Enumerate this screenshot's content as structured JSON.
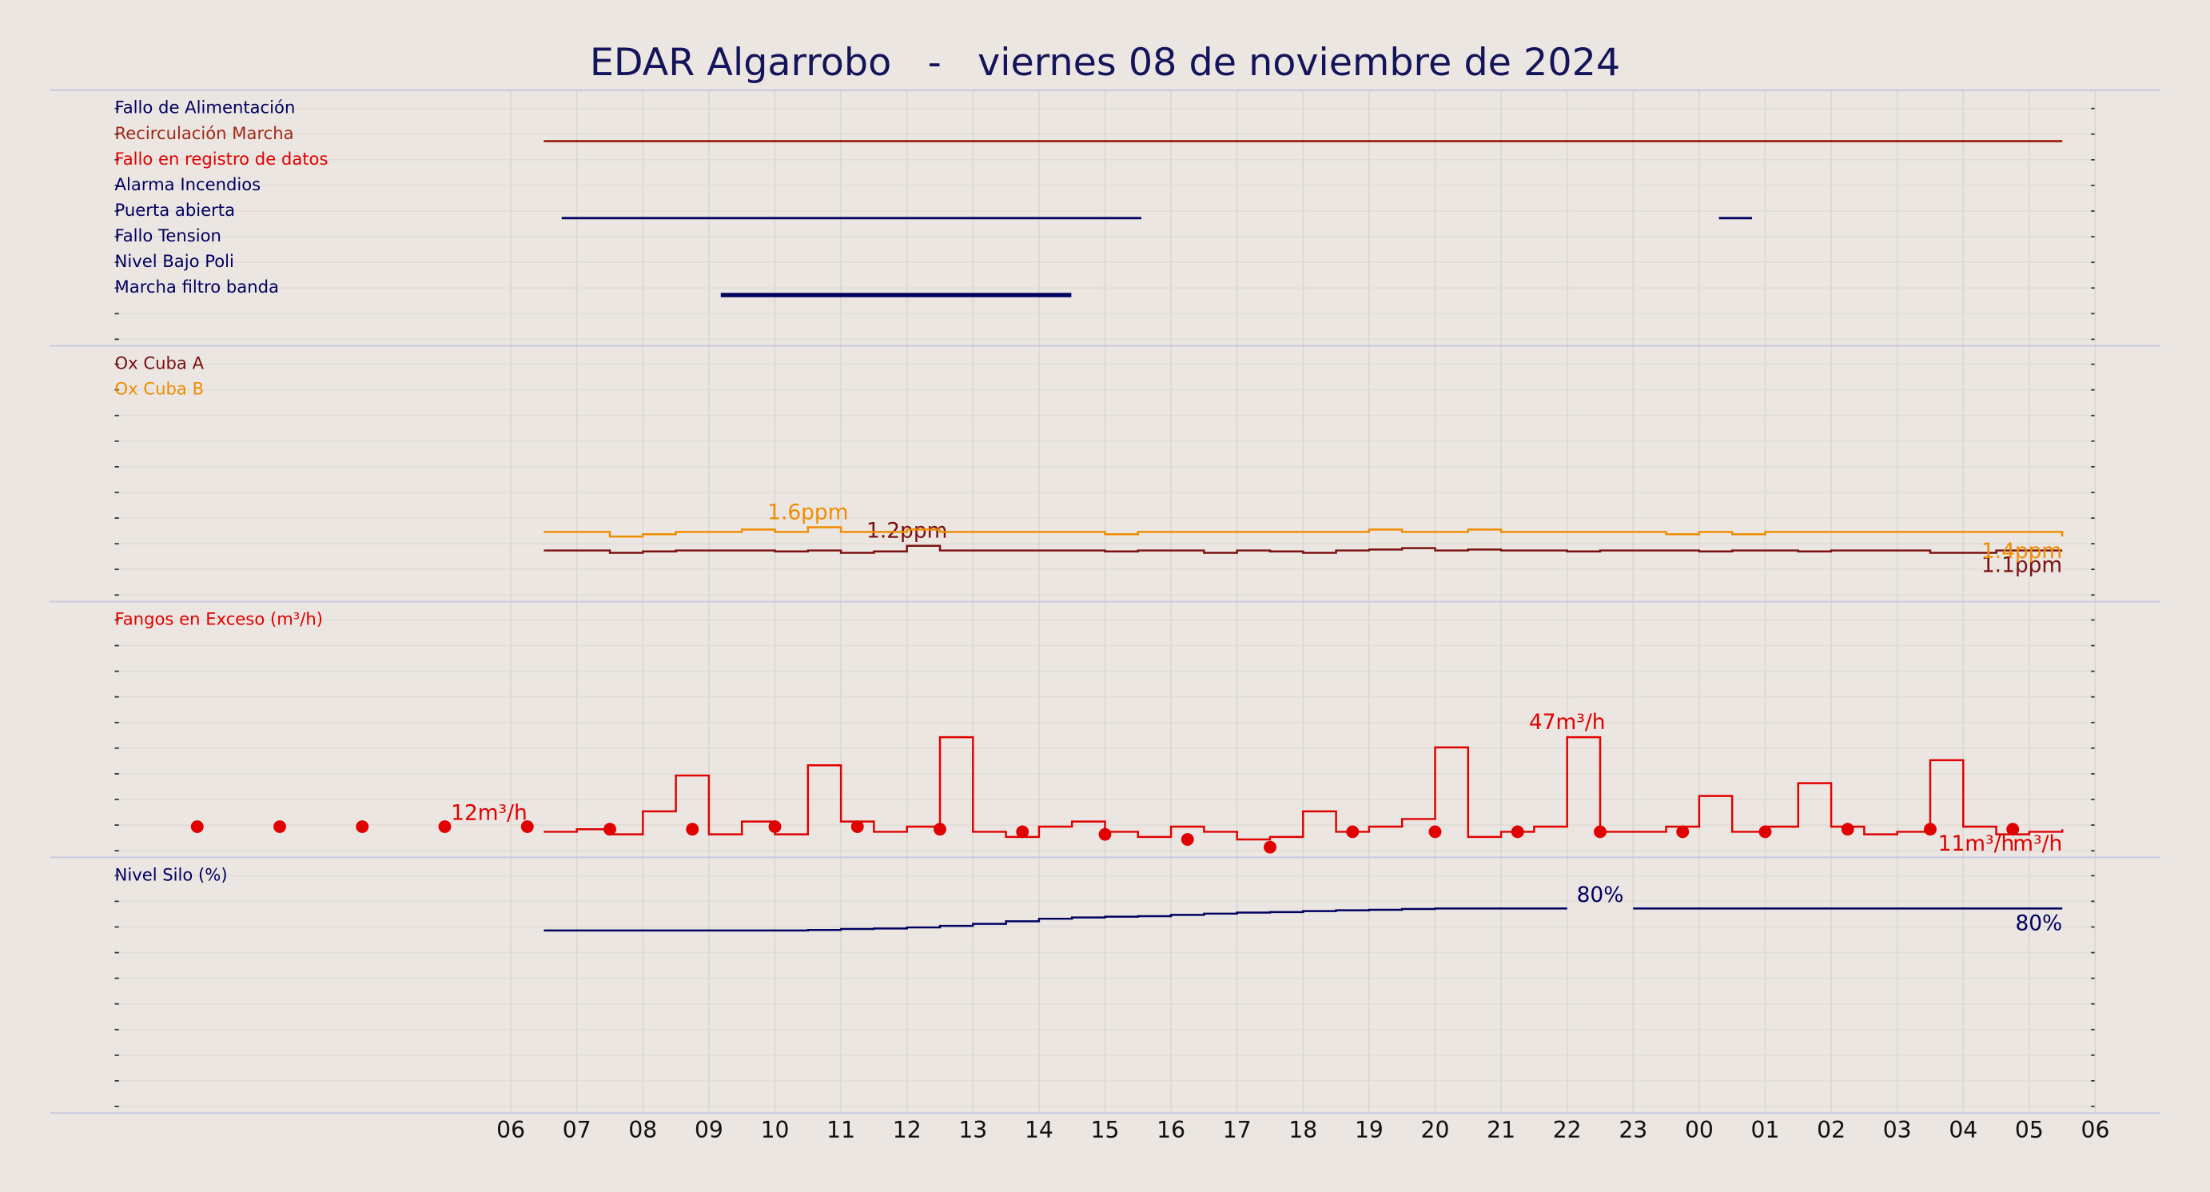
{
  "title": "EDAR Algarrobo   -   viernes 08 de noviembre de 2024",
  "xlim": [
    -6,
    24
  ],
  "xticks": [
    {
      "value": 0,
      "label": "06"
    },
    {
      "value": 1,
      "label": "07"
    },
    {
      "value": 2,
      "label": "08"
    },
    {
      "value": 3,
      "label": "09"
    },
    {
      "value": 4,
      "label": "10"
    },
    {
      "value": 5,
      "label": "11"
    },
    {
      "value": 6,
      "label": "12"
    },
    {
      "value": 7,
      "label": "13"
    },
    {
      "value": 8,
      "label": "14"
    },
    {
      "value": 9,
      "label": "15"
    },
    {
      "value": 10,
      "label": "16"
    },
    {
      "value": 11,
      "label": "17"
    },
    {
      "value": 12,
      "label": "18"
    },
    {
      "value": 13,
      "label": "19"
    },
    {
      "value": 14,
      "label": "20"
    },
    {
      "value": 15,
      "label": "21"
    },
    {
      "value": 16,
      "label": "22"
    },
    {
      "value": 17,
      "label": "23"
    },
    {
      "value": 18,
      "label": "00"
    },
    {
      "value": 19,
      "label": "01"
    },
    {
      "value": 20,
      "label": "02"
    },
    {
      "value": 21,
      "label": "03"
    },
    {
      "value": 22,
      "label": "04"
    },
    {
      "value": 23,
      "label": "05"
    },
    {
      "value": 24,
      "label": "06"
    }
  ],
  "chart_data": [
    {
      "type": "timeline",
      "series": [
        {
          "name": "Fallo de Alimentación",
          "color": "#000060",
          "intervals": []
        },
        {
          "name": "Recirculación Marcha",
          "color": "#a02818",
          "intervals": [
            [
              0.5,
              23.5
            ]
          ]
        },
        {
          "name": "Fallo en registro de datos",
          "color": "#e00000",
          "intervals": []
        },
        {
          "name": "Alarma Incendios",
          "color": "#000060",
          "intervals": []
        },
        {
          "name": "Puerta abierta",
          "color": "#000060",
          "intervals": [
            [
              0.77,
              9.55
            ],
            [
              18.3,
              18.8
            ]
          ]
        },
        {
          "name": "Fallo Tension",
          "color": "#000060",
          "intervals": []
        },
        {
          "name": "Nivel Bajo Poli",
          "color": "#000060",
          "intervals": []
        },
        {
          "name": "Marcha filtro banda",
          "color": "#000060",
          "intervals": [
            [
              3.18,
              8.49
            ]
          ],
          "bold": true
        }
      ]
    },
    {
      "type": "line",
      "ylim": [
        0,
        5.5
      ],
      "x": [
        0.5,
        1,
        1.5,
        2,
        2.5,
        3,
        3.5,
        4,
        4.5,
        5,
        5.5,
        6,
        6.5,
        7,
        7.5,
        8,
        8.5,
        9,
        9.5,
        10,
        10.5,
        11,
        11.5,
        12,
        12.5,
        13,
        13.5,
        14,
        14.5,
        15,
        15.5,
        16,
        16.5,
        17,
        17.5,
        18,
        18.5,
        19,
        19.5,
        20,
        20.5,
        21,
        21.5,
        22,
        22.5,
        23,
        23.5
      ],
      "series": [
        {
          "name": "Ox Cuba A",
          "color": "#7a1010",
          "max_label": "1.2ppm",
          "last_label": "1.1ppm",
          "values": [
            1.1,
            1.1,
            1.05,
            1.08,
            1.1,
            1.1,
            1.1,
            1.08,
            1.1,
            1.05,
            1.08,
            1.2,
            1.1,
            1.1,
            1.1,
            1.1,
            1.1,
            1.08,
            1.1,
            1.1,
            1.05,
            1.1,
            1.08,
            1.05,
            1.1,
            1.12,
            1.15,
            1.1,
            1.12,
            1.1,
            1.1,
            1.08,
            1.1,
            1.1,
            1.1,
            1.08,
            1.1,
            1.1,
            1.08,
            1.1,
            1.1,
            1.1,
            1.05,
            1.05,
            1.1,
            1.1,
            1.1
          ]
        },
        {
          "name": "Ox Cuba B",
          "color": "#f08c00",
          "max_label": "1.6ppm",
          "last_label": "1.4ppm",
          "values": [
            1.5,
            1.5,
            1.4,
            1.45,
            1.5,
            1.5,
            1.55,
            1.5,
            1.6,
            1.5,
            1.5,
            1.55,
            1.5,
            1.5,
            1.5,
            1.5,
            1.5,
            1.45,
            1.5,
            1.5,
            1.5,
            1.5,
            1.5,
            1.5,
            1.5,
            1.55,
            1.5,
            1.5,
            1.55,
            1.5,
            1.5,
            1.5,
            1.5,
            1.5,
            1.45,
            1.5,
            1.45,
            1.5,
            1.5,
            1.5,
            1.5,
            1.5,
            1.5,
            1.5,
            1.5,
            1.5,
            1.4
          ]
        }
      ]
    },
    {
      "type": "line",
      "ylim": [
        0,
        100
      ],
      "x": [
        0.5,
        1,
        1.5,
        2,
        2.5,
        3,
        3.5,
        4,
        4.5,
        5,
        5.5,
        6,
        6.5,
        7,
        7.5,
        8,
        8.5,
        9,
        9.5,
        10,
        10.5,
        11,
        11.5,
        12,
        12.5,
        13,
        13.5,
        14,
        14.5,
        15,
        15.5,
        16,
        16.5,
        17,
        17.5,
        18,
        18.5,
        19,
        19.5,
        20,
        20.5,
        21,
        21.5,
        22,
        22.5,
        23,
        23.5
      ],
      "series": [
        {
          "name": "Fangos en Exceso (m³/h)",
          "color": "#e00000",
          "max_label": "47m³/h",
          "last_label": "11m³/h",
          "values": [
            10,
            11,
            9,
            18,
            32,
            9,
            14,
            9,
            36,
            14,
            10,
            12,
            47,
            10,
            8,
            12,
            14,
            10,
            8,
            12,
            10,
            7,
            8,
            18,
            10,
            12,
            15,
            43,
            8,
            10,
            12,
            47,
            10,
            10,
            12,
            24,
            10,
            12,
            29,
            12,
            9,
            10,
            38,
            12,
            9,
            10,
            11
          ]
        }
      ],
      "markers": {
        "color": "#e00000",
        "first_label": "12m³/h",
        "last_label": "m³/h",
        "x": [
          -4.75,
          -3.5,
          -2.25,
          -1,
          0.25,
          1.5,
          2.75,
          4,
          5.25,
          6.5,
          7.75,
          9,
          10.25,
          11.5,
          12.75,
          14,
          15.25,
          16.5,
          17.75,
          19,
          20.25,
          21.5,
          22.75
        ],
        "values": [
          12,
          12,
          12,
          12,
          12,
          11,
          11,
          12,
          12,
          11,
          10,
          9,
          7,
          4,
          10,
          10,
          10,
          10,
          10,
          10,
          11,
          11,
          11
        ]
      }
    },
    {
      "type": "line",
      "ylim": [
        0,
        100
      ],
      "x": [
        0.5,
        1,
        1.5,
        2,
        2.5,
        3,
        3.5,
        4,
        4.5,
        5,
        5.5,
        6,
        6.5,
        7,
        7.5,
        8,
        8.5,
        9,
        9.5,
        10,
        10.5,
        11,
        11.5,
        12,
        12.5,
        13,
        13.5,
        14,
        14.5,
        15,
        15.5,
        16,
        16.5,
        17,
        17.5,
        18,
        18.5,
        19,
        19.5,
        20,
        20.5,
        21,
        21.5,
        22,
        22.5,
        23,
        23.5
      ],
      "series": [
        {
          "name": "Nivel Silo (%)",
          "color": "#000060",
          "gap_label": "80%",
          "last_label": "80%",
          "values": [
            71.4,
            71.4,
            71.4,
            71.4,
            71.4,
            71.4,
            71.4,
            71.4,
            71.6,
            72,
            72.2,
            72.6,
            73.2,
            74,
            75,
            76,
            76.5,
            76.8,
            77,
            77.5,
            78,
            78.4,
            78.6,
            79,
            79.3,
            79.5,
            79.8,
            80,
            80,
            80,
            80,
            80,
            null,
            80,
            80,
            80,
            80,
            80,
            80,
            80,
            80,
            80,
            80,
            80,
            80,
            80,
            80
          ]
        }
      ]
    }
  ]
}
